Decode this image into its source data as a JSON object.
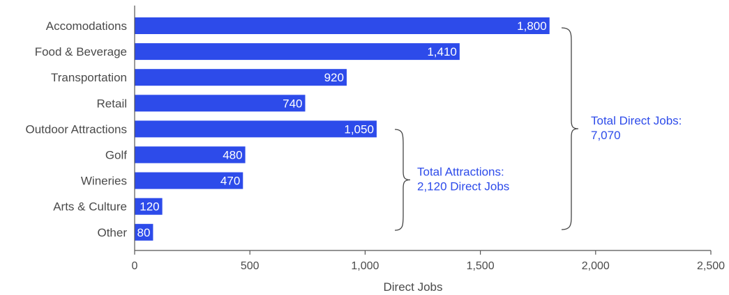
{
  "colors": {
    "bar": "#2D4BEA",
    "annotation": "#2D4BEA",
    "brace": "#444444",
    "text": "#4a4a4a"
  },
  "chart_data": {
    "type": "bar",
    "orientation": "horizontal",
    "categories": [
      "Accomodations",
      "Food & Beverage",
      "Transportation",
      "Retail",
      "Outdoor Attractions",
      "Golf",
      "Wineries",
      "Arts & Culture",
      "Other"
    ],
    "values": [
      1800,
      1410,
      920,
      740,
      1050,
      480,
      470,
      120,
      80
    ],
    "value_labels": [
      "1,800",
      "1,410",
      "920",
      "740",
      "1,050",
      "480",
      "470",
      "120",
      "80"
    ],
    "xlabel": "Direct Jobs",
    "ylabel": "",
    "xlim": [
      0,
      2500
    ],
    "xticks": [
      0,
      500,
      1000,
      1500,
      2000,
      2500
    ],
    "xtick_labels": [
      "0",
      "500",
      "1,000",
      "1,500",
      "2,000",
      "2,500"
    ],
    "grid": false,
    "annotations": [
      {
        "lines": [
          "Total Attractions:",
          "2,120 Direct Jobs"
        ],
        "brace_from_category": 4,
        "brace_to_category": 8
      },
      {
        "lines": [
          "Total Direct Jobs:",
          "7,070"
        ],
        "brace_from_category": 0,
        "brace_to_category": 8
      }
    ]
  }
}
